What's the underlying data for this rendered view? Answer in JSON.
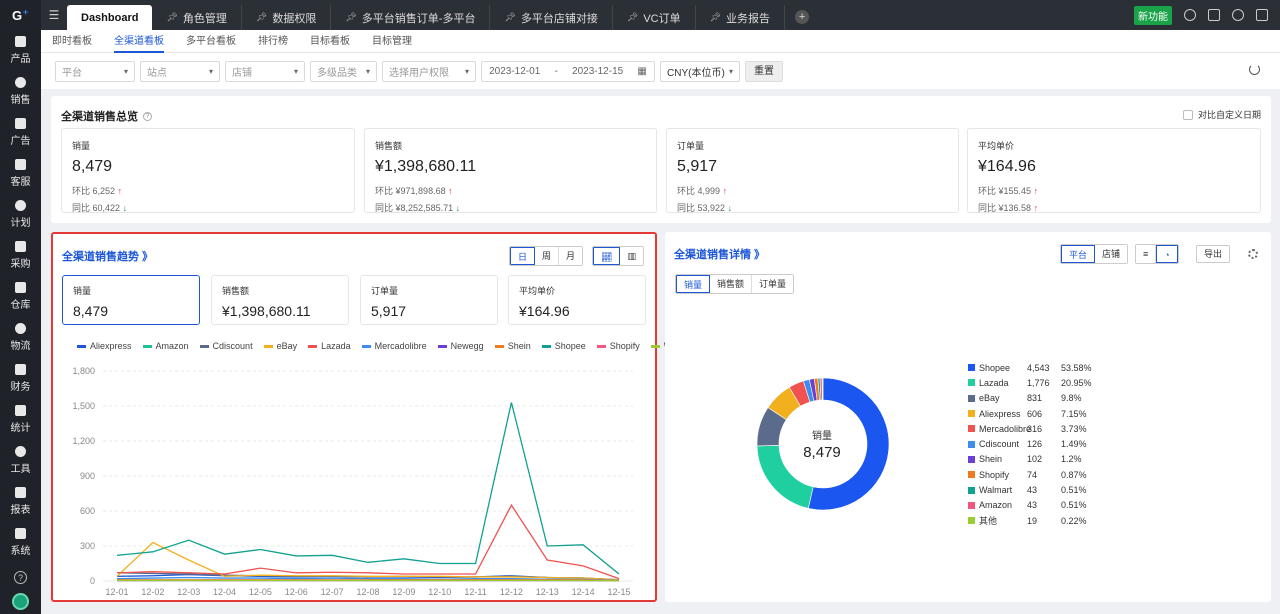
{
  "sidebar": {
    "logo": "G",
    "items": [
      {
        "label": "产品",
        "icon": "box-icon"
      },
      {
        "label": "销售",
        "icon": "sales-icon"
      },
      {
        "label": "广告",
        "icon": "monitor-icon"
      },
      {
        "label": "客服",
        "icon": "chat-icon"
      },
      {
        "label": "计划",
        "icon": "clipboard-icon"
      },
      {
        "label": "采购",
        "icon": "cart-icon"
      },
      {
        "label": "仓库",
        "icon": "warehouse-icon"
      },
      {
        "label": "物流",
        "icon": "truck-icon"
      },
      {
        "label": "财务",
        "icon": "money-bag-icon"
      },
      {
        "label": "统计",
        "icon": "stats-icon"
      },
      {
        "label": "工具",
        "icon": "toolbox-icon"
      },
      {
        "label": "报表",
        "icon": "report-icon"
      },
      {
        "label": "系统",
        "icon": "system-icon"
      }
    ]
  },
  "topbar": {
    "tabs": [
      {
        "label": "Dashboard",
        "active": true
      },
      {
        "label": "角色管理"
      },
      {
        "label": "数据权限"
      },
      {
        "label": "多平台销售订单-多平台"
      },
      {
        "label": "多平台店铺对接"
      },
      {
        "label": "VC订单"
      },
      {
        "label": "业务报告"
      }
    ],
    "new_feature_badge": "新功能"
  },
  "subnav": [
    "即时看板",
    "全渠道看板",
    "多平台看板",
    "排行榜",
    "目标看板",
    "目标管理"
  ],
  "subnav_active": 1,
  "filters": {
    "platform": "平台",
    "site": "站点",
    "shop": "店铺",
    "category": "多级品类",
    "permission": "选择用户权限",
    "date_start": "2023-12-01",
    "date_sep": "-",
    "date_end": "2023-12-15",
    "currency": "CNY(本位币)",
    "reset_label": "重置"
  },
  "overview": {
    "title": "全渠道销售总览",
    "compare_label": "对比自定义日期",
    "kpis": [
      {
        "label": "销量",
        "value": "8,479",
        "hb_label": "环比",
        "hb": "6,252",
        "tb_label": "同比",
        "tb": "60,422",
        "hb_dir": "up",
        "tb_dir": "down"
      },
      {
        "label": "销售额",
        "value": "¥1,398,680.11",
        "hb_label": "环比",
        "hb": "¥971,898.68",
        "tb_label": "同比",
        "tb": "¥8,252,585.71",
        "hb_dir": "up",
        "tb_dir": "down"
      },
      {
        "label": "订单量",
        "value": "5,917",
        "hb_label": "环比",
        "hb": "4,999",
        "tb_label": "同比",
        "tb": "53,922",
        "hb_dir": "up",
        "tb_dir": "down"
      },
      {
        "label": "平均单价",
        "value": "¥164.96",
        "hb_label": "环比",
        "hb": "¥155.45",
        "tb_label": "同比",
        "tb": "¥136.58",
        "hb_dir": "up",
        "tb_dir": "up"
      }
    ]
  },
  "trend": {
    "title": "全渠道销售趋势 》",
    "period_buttons": [
      "日",
      "周",
      "月"
    ],
    "metrics": [
      {
        "label": "销量",
        "value": "8,479"
      },
      {
        "label": "销售额",
        "value": "¥1,398,680.11"
      },
      {
        "label": "订单量",
        "value": "5,917"
      },
      {
        "label": "平均单价",
        "value": "¥164.96"
      }
    ]
  },
  "detail": {
    "title": "全渠道销售详情 》",
    "group_buttons": [
      "平台",
      "店铺"
    ],
    "export_label": "导出",
    "metric_tabs": [
      "销量",
      "销售额",
      "订单量"
    ],
    "donut_label": "销量",
    "donut_value": "8,479"
  },
  "chart_data": [
    {
      "type": "line",
      "x": [
        "12-01",
        "12-02",
        "12-03",
        "12-04",
        "12-05",
        "12-06",
        "12-07",
        "12-08",
        "12-09",
        "12-10",
        "12-11",
        "12-12",
        "12-13",
        "12-14",
        "12-15"
      ],
      "ylim": [
        0,
        1800
      ],
      "yticks": [
        "0",
        "300",
        "600",
        "900",
        "1,200",
        "1,500",
        "1,800"
      ],
      "grid": true,
      "legend_position": "top",
      "series": [
        {
          "name": "Aliexpress",
          "color": "#1d57d8",
          "values": [
            40,
            45,
            55,
            45,
            40,
            35,
            40,
            35,
            35,
            30,
            35,
            45,
            30,
            25,
            10
          ]
        },
        {
          "name": "Amazon",
          "color": "#1fbf9b",
          "values": [
            5,
            5,
            5,
            5,
            5,
            5,
            5,
            5,
            5,
            5,
            5,
            5,
            5,
            5,
            2
          ]
        },
        {
          "name": "Cdiscount",
          "color": "#5b6b8c",
          "values": [
            70,
            65,
            60,
            50,
            45,
            40,
            40,
            35,
            40,
            35,
            35,
            40,
            30,
            25,
            10
          ]
        },
        {
          "name": "eBay",
          "color": "#f2b01e",
          "values": [
            40,
            330,
            180,
            40,
            50,
            45,
            45,
            40,
            40,
            40,
            35,
            35,
            30,
            25,
            10
          ]
        },
        {
          "name": "Lazada",
          "color": "#f0524f",
          "values": [
            70,
            80,
            70,
            60,
            110,
            70,
            75,
            70,
            60,
            60,
            60,
            650,
            180,
            130,
            20
          ]
        },
        {
          "name": "Mercadolibre",
          "color": "#3d8cf0",
          "values": [
            20,
            25,
            30,
            25,
            25,
            20,
            25,
            20,
            20,
            15,
            20,
            20,
            15,
            15,
            5
          ]
        },
        {
          "name": "Newegg",
          "color": "#6b3fd4",
          "values": [
            5,
            5,
            5,
            5,
            5,
            5,
            5,
            5,
            5,
            5,
            5,
            5,
            5,
            5,
            2
          ]
        },
        {
          "name": "Shein",
          "color": "#f07b1e",
          "values": [
            10,
            10,
            10,
            10,
            10,
            10,
            10,
            10,
            10,
            10,
            10,
            10,
            10,
            10,
            3
          ]
        },
        {
          "name": "Shopee",
          "color": "#11a191",
          "values": [
            220,
            250,
            350,
            230,
            270,
            215,
            220,
            160,
            190,
            150,
            150,
            1530,
            300,
            310,
            60
          ]
        },
        {
          "name": "Shopify",
          "color": "#f0577d",
          "values": [
            5,
            5,
            5,
            5,
            5,
            5,
            5,
            5,
            5,
            5,
            5,
            5,
            5,
            5,
            2
          ]
        },
        {
          "name": "Walmart",
          "color": "#9acd32",
          "values": [
            5,
            5,
            5,
            5,
            5,
            5,
            5,
            5,
            5,
            5,
            5,
            5,
            5,
            5,
            2
          ]
        }
      ]
    },
    {
      "type": "pie",
      "slices": [
        {
          "name": "Shopee",
          "value": 4543,
          "value_label": "4,543",
          "pct": "53.58%",
          "color": "#1a56ef"
        },
        {
          "name": "Lazada",
          "value": 1776,
          "value_label": "1,776",
          "pct": "20.95%",
          "color": "#1fcf9f"
        },
        {
          "name": "eBay",
          "value": 831,
          "value_label": "831",
          "pct": "9.8%",
          "color": "#5b6b8c"
        },
        {
          "name": "Aliexpress",
          "value": 606,
          "value_label": "606",
          "pct": "7.15%",
          "color": "#f2b01e"
        },
        {
          "name": "Mercadolibre",
          "value": 316,
          "value_label": "316",
          "pct": "3.73%",
          "color": "#f0524f"
        },
        {
          "name": "Cdiscount",
          "value": 126,
          "value_label": "126",
          "pct": "1.49%",
          "color": "#3d8cf0"
        },
        {
          "name": "Shein",
          "value": 102,
          "value_label": "102",
          "pct": "1.2%",
          "color": "#6b3fd4"
        },
        {
          "name": "Shopify",
          "value": 74,
          "value_label": "74",
          "pct": "0.87%",
          "color": "#f07b1e"
        },
        {
          "name": "Walmart",
          "value": 43,
          "value_label": "43",
          "pct": "0.51%",
          "color": "#11a191"
        },
        {
          "name": "Amazon",
          "value": 43,
          "value_label": "43",
          "pct": "0.51%",
          "color": "#f0577d"
        },
        {
          "name": "其他",
          "value": 19,
          "value_label": "19",
          "pct": "0.22%",
          "color": "#9acd32"
        }
      ]
    }
  ]
}
